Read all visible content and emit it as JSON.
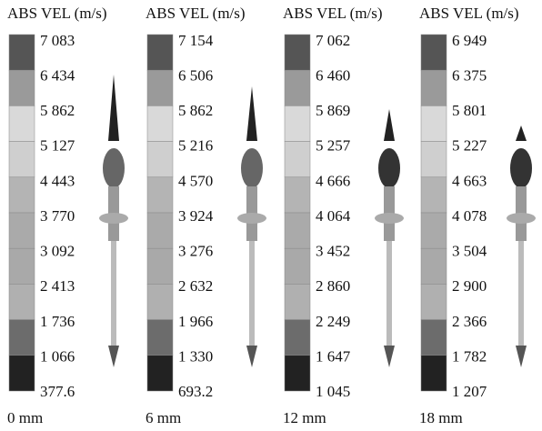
{
  "panels": [
    {
      "title": "ABS VEL (m/s)",
      "labels": [
        "7 083",
        "6 434",
        "5 862",
        "5 127",
        "4 443",
        "3 770",
        "3 092",
        "2 413",
        "1 736",
        "1 066",
        "377.6"
      ],
      "caption": "0 mm"
    },
    {
      "title": "ABS VEL (m/s)",
      "labels": [
        "7 154",
        "6 506",
        "5 862",
        "5 216",
        "4 570",
        "3 924",
        "3 276",
        "2 632",
        "1 966",
        "1 330",
        "693.2"
      ],
      "caption": "6 mm"
    },
    {
      "title": "ABS VEL (m/s)",
      "labels": [
        "7 062",
        "6 460",
        "5 869",
        "5 257",
        "4 666",
        "4 064",
        "3 452",
        "2 860",
        "2 249",
        "1 647",
        "1 045"
      ],
      "caption": "12 mm"
    },
    {
      "title": "ABS VEL (m/s)",
      "labels": [
        "6 949",
        "6 375",
        "5 801",
        "5 227",
        "4 663",
        "4 078",
        "3 504",
        "2 900",
        "2 366",
        "1 782",
        "1 207"
      ],
      "caption": "18 mm"
    }
  ]
}
